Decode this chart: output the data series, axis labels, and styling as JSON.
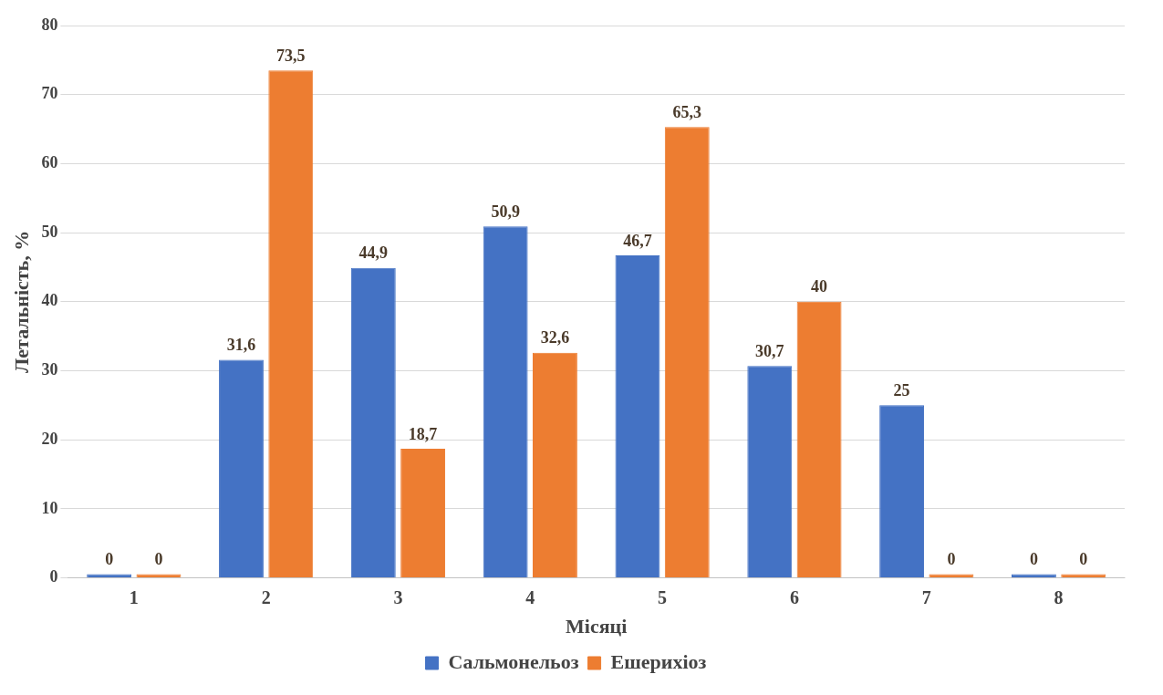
{
  "chart_data": {
    "type": "bar",
    "xlabel": "Місяці",
    "ylabel": "Летальність, %",
    "categories": [
      "1",
      "2",
      "3",
      "4",
      "5",
      "6",
      "7",
      "8"
    ],
    "series": [
      {
        "name": "Сальмонельоз",
        "color": "#4472c4",
        "values": [
          0,
          31.6,
          44.9,
          50.9,
          46.7,
          30.7,
          25,
          0
        ],
        "value_labels": [
          "0",
          "31,6",
          "44,9",
          "50,9",
          "46,7",
          "30,7",
          "25",
          "0"
        ]
      },
      {
        "name": "Ешерихіоз",
        "color": "#ed7d31",
        "values": [
          0,
          73.5,
          18.7,
          32.6,
          65.3,
          40,
          0,
          0
        ],
        "value_labels": [
          "0",
          "73,5",
          "18,7",
          "32,6",
          "65,3",
          "40",
          "0",
          "0"
        ]
      }
    ],
    "ylim": [
      0,
      80
    ],
    "yticks": [
      0,
      10,
      20,
      30,
      40,
      50,
      60,
      70,
      80
    ],
    "grid": "y",
    "legend": "bottom"
  }
}
